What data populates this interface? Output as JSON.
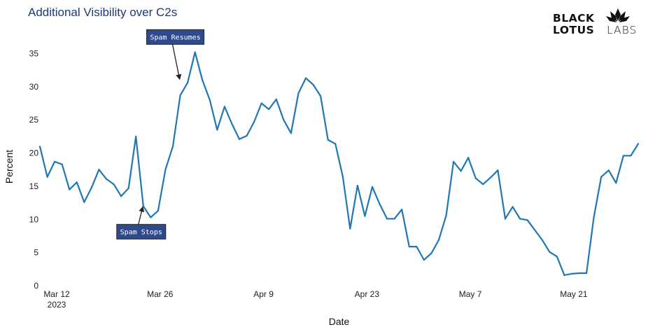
{
  "page": {
    "title": "Additional Visibility over C2s"
  },
  "logo": {
    "line1": "BLACK",
    "line2_bold": "LOTUS",
    "line2_light": "LABS",
    "mark": "·"
  },
  "colors": {
    "line": "#1f77b4",
    "title": "#1f3a6e",
    "annotation_bg": "#2f4a8a"
  },
  "chart_data": {
    "type": "line",
    "xlabel": "Date",
    "ylabel": "Percent",
    "ylim": [
      0,
      38
    ],
    "yticks": [
      0,
      5,
      10,
      15,
      20,
      25,
      30,
      35
    ],
    "xlim": [
      "2023-03-12",
      "2023-06-01"
    ],
    "xticks": [
      {
        "date": "2023-03-12",
        "label": "Mar 12",
        "sublabel": "2023"
      },
      {
        "date": "2023-03-26",
        "label": "Mar 26",
        "sublabel": ""
      },
      {
        "date": "2023-04-09",
        "label": "Apr 9",
        "sublabel": ""
      },
      {
        "date": "2023-04-23",
        "label": "Apr 23",
        "sublabel": ""
      },
      {
        "date": "2023-05-07",
        "label": "May 7",
        "sublabel": ""
      },
      {
        "date": "2023-05-21",
        "label": "May 21",
        "sublabel": ""
      }
    ],
    "grid": false,
    "series": [
      {
        "x": [
          "2023-03-12",
          "2023-03-13",
          "2023-03-14",
          "2023-03-15",
          "2023-03-16",
          "2023-03-17",
          "2023-03-18",
          "2023-03-19",
          "2023-03-20",
          "2023-03-21",
          "2023-03-22",
          "2023-03-23",
          "2023-03-24",
          "2023-03-25",
          "2023-03-26",
          "2023-03-27",
          "2023-03-28",
          "2023-03-29",
          "2023-03-30",
          "2023-03-31",
          "2023-04-01",
          "2023-04-02",
          "2023-04-03",
          "2023-04-04",
          "2023-04-05",
          "2023-04-06",
          "2023-04-07",
          "2023-04-08",
          "2023-04-09",
          "2023-04-10",
          "2023-04-11",
          "2023-04-12",
          "2023-04-13",
          "2023-04-14",
          "2023-04-15",
          "2023-04-16",
          "2023-04-17",
          "2023-04-18",
          "2023-04-19",
          "2023-04-20",
          "2023-04-21",
          "2023-04-22",
          "2023-04-23",
          "2023-04-24",
          "2023-04-25",
          "2023-04-26",
          "2023-04-27",
          "2023-04-28",
          "2023-04-29",
          "2023-04-30",
          "2023-05-01",
          "2023-05-02",
          "2023-05-03",
          "2023-05-04",
          "2023-05-05",
          "2023-05-06",
          "2023-05-07",
          "2023-05-08",
          "2023-05-09",
          "2023-05-10",
          "2023-05-11",
          "2023-05-12",
          "2023-05-13",
          "2023-05-14",
          "2023-05-15",
          "2023-05-16",
          "2023-05-17",
          "2023-05-18",
          "2023-05-19",
          "2023-05-20",
          "2023-05-21",
          "2023-05-22",
          "2023-05-23",
          "2023-05-24",
          "2023-05-25",
          "2023-05-26",
          "2023-05-27",
          "2023-05-28",
          "2023-05-29",
          "2023-05-30",
          "2023-05-31",
          "2023-06-01"
        ],
        "y": [
          21.0,
          16.4,
          18.7,
          18.3,
          14.5,
          15.6,
          12.6,
          14.8,
          17.5,
          16.1,
          15.3,
          13.5,
          14.7,
          22.5,
          12.0,
          10.3,
          11.3,
          17.5,
          21.0,
          28.7,
          30.6,
          35.2,
          31.0,
          28.0,
          23.5,
          27.0,
          24.4,
          22.1,
          22.6,
          24.7,
          27.5,
          26.6,
          28.1,
          25.0,
          23.0,
          29.0,
          31.3,
          30.3,
          28.6,
          22.0,
          21.4,
          16.5,
          8.6,
          15.1,
          10.5,
          14.9,
          12.3,
          10.1,
          10.1,
          11.5,
          5.9,
          5.9,
          3.9,
          4.9,
          6.9,
          10.6,
          18.7,
          17.3,
          19.3,
          16.2,
          15.3,
          16.3,
          17.4,
          10.1,
          11.9,
          10.1,
          9.9,
          8.4,
          6.9,
          5.1,
          4.4,
          1.6,
          1.8,
          1.9,
          1.9,
          10.4,
          16.4,
          17.4,
          15.5,
          19.6,
          19.6,
          21.4
        ]
      }
    ],
    "annotations": [
      {
        "text": "Spam Resumes",
        "date": "2023-03-31",
        "value": 31.0
      },
      {
        "text": "Spam Stops",
        "date": "2023-03-26",
        "value": 12.0
      }
    ]
  }
}
